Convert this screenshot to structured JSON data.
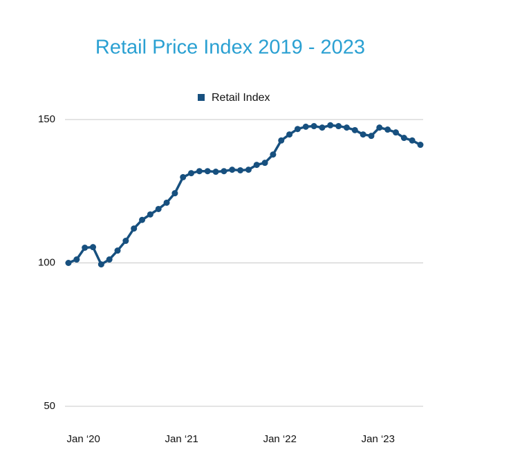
{
  "chart_data": {
    "type": "line",
    "title": "Retail Price Index 2019 - 2023",
    "categories": [
      null,
      null,
      "Jan ‘20",
      null,
      null,
      null,
      null,
      null,
      null,
      null,
      null,
      null,
      null,
      null,
      "Jan ‘21",
      null,
      null,
      null,
      null,
      null,
      null,
      null,
      null,
      null,
      null,
      null,
      "Jan ‘22",
      null,
      null,
      null,
      null,
      null,
      null,
      null,
      null,
      null,
      null,
      null,
      "Jan ‘23",
      null,
      null,
      null,
      null,
      null
    ],
    "series": [
      {
        "name": "Retail Index",
        "color": "#17507f",
        "values": [
          100,
          101.2,
          105.3,
          105.5,
          99.5,
          101.2,
          104.3,
          107.7,
          112,
          115,
          116.9,
          118.8,
          121,
          124.3,
          129.9,
          131.3,
          132,
          132,
          131.8,
          132,
          132.5,
          132.3,
          132.5,
          134.2,
          134.9,
          137.8,
          142.7,
          144.8,
          146.7,
          147.5,
          147.7,
          147.2,
          148,
          147.7,
          147.2,
          146.3,
          144.8,
          144.3,
          147.2,
          146.5,
          145.5,
          143.6,
          142.7,
          141.2
        ]
      }
    ],
    "ylim": [
      50,
      150
    ],
    "yticks": [
      50,
      100,
      150
    ],
    "grid": true,
    "legend": "top"
  }
}
